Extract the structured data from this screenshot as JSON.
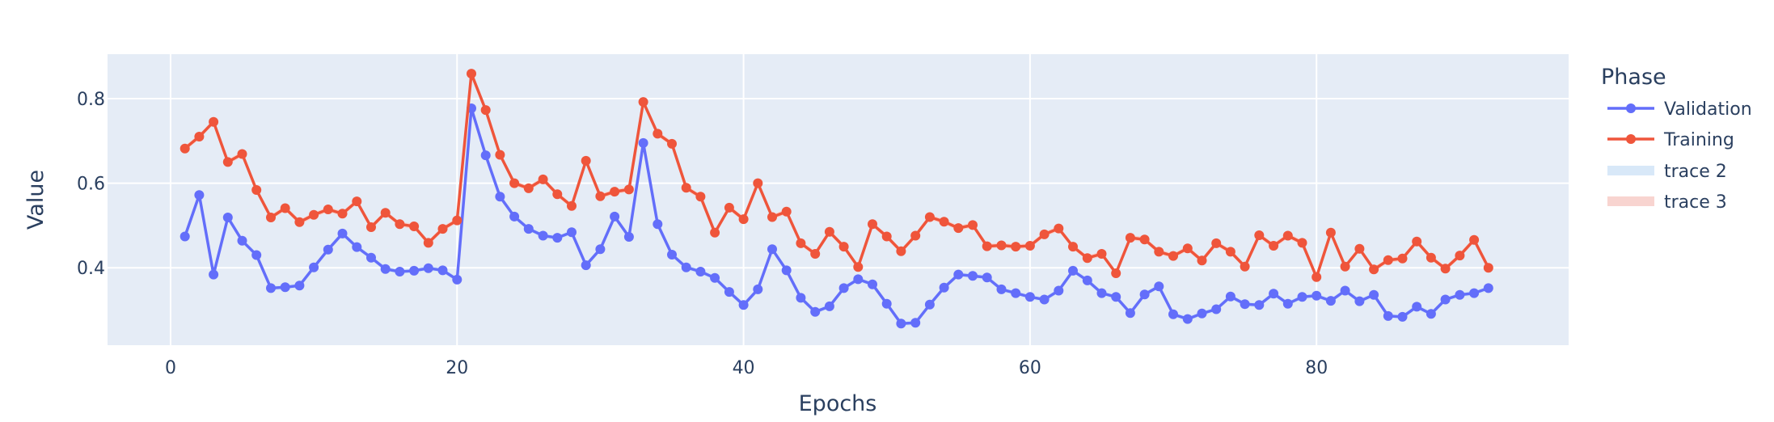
{
  "chart_data": {
    "type": "line",
    "xlabel": "Epochs",
    "ylabel": "Value",
    "xlim": [
      -4.4,
      97.6
    ],
    "ylim": [
      0.217,
      0.905
    ],
    "xticks": [
      0,
      20,
      40,
      60,
      80
    ],
    "yticks": [
      0.4,
      0.6,
      0.8
    ],
    "grid": true,
    "legend": {
      "title": "Phase",
      "position": "right"
    },
    "background_color": "#e5ecf6",
    "series": [
      {
        "name": "Validation",
        "color": "#636efa",
        "markers": true,
        "x": [
          1,
          2,
          3,
          4,
          5,
          6,
          7,
          8,
          9,
          10,
          11,
          12,
          13,
          14,
          15,
          16,
          17,
          18,
          19,
          20,
          21,
          22,
          23,
          24,
          25,
          26,
          27,
          28,
          29,
          30,
          31,
          32,
          33,
          34,
          35,
          36,
          37,
          38,
          39,
          40,
          41,
          42,
          43,
          44,
          45,
          46,
          47,
          48,
          49,
          50,
          51,
          52,
          53,
          54,
          55,
          56,
          57,
          58,
          59,
          60,
          61,
          62,
          63,
          64,
          65,
          66,
          67,
          68,
          69,
          70,
          71,
          72,
          73,
          74,
          75,
          76,
          77,
          78,
          79,
          80,
          81,
          82,
          83,
          84,
          85,
          86,
          87,
          88,
          89,
          90,
          91,
          92
        ],
        "y": [
          0.474,
          0.572,
          0.384,
          0.519,
          0.464,
          0.43,
          0.352,
          0.354,
          0.358,
          0.401,
          0.443,
          0.481,
          0.449,
          0.424,
          0.397,
          0.391,
          0.393,
          0.399,
          0.394,
          0.372,
          0.777,
          0.666,
          0.568,
          0.521,
          0.492,
          0.476,
          0.471,
          0.484,
          0.406,
          0.444,
          0.521,
          0.473,
          0.695,
          0.503,
          0.431,
          0.401,
          0.391,
          0.376,
          0.343,
          0.312,
          0.349,
          0.444,
          0.394,
          0.329,
          0.296,
          0.309,
          0.352,
          0.373,
          0.361,
          0.315,
          0.268,
          0.27,
          0.313,
          0.353,
          0.384,
          0.381,
          0.377,
          0.349,
          0.34,
          0.331,
          0.325,
          0.346,
          0.393,
          0.37,
          0.34,
          0.331,
          0.293,
          0.337,
          0.356,
          0.29,
          0.279,
          0.292,
          0.302,
          0.332,
          0.314,
          0.312,
          0.339,
          0.315,
          0.331,
          0.334,
          0.322,
          0.346,
          0.321,
          0.336,
          0.286,
          0.284,
          0.308,
          0.291,
          0.325,
          0.336,
          0.34,
          0.352
        ]
      },
      {
        "name": "Training",
        "color": "#ef553b",
        "markers": true,
        "x": [
          1,
          2,
          3,
          4,
          5,
          6,
          7,
          8,
          9,
          10,
          11,
          12,
          13,
          14,
          15,
          16,
          17,
          18,
          19,
          20,
          21,
          22,
          23,
          24,
          25,
          26,
          27,
          28,
          29,
          30,
          31,
          32,
          33,
          34,
          35,
          36,
          37,
          38,
          39,
          40,
          41,
          42,
          43,
          44,
          45,
          46,
          47,
          48,
          49,
          50,
          51,
          52,
          53,
          54,
          55,
          56,
          57,
          58,
          59,
          60,
          61,
          62,
          63,
          64,
          65,
          66,
          67,
          68,
          69,
          70,
          71,
          72,
          73,
          74,
          75,
          76,
          77,
          78,
          79,
          80,
          81,
          82,
          83,
          84,
          85,
          86,
          87,
          88,
          89,
          90,
          91,
          92
        ],
        "y": [
          0.682,
          0.71,
          0.745,
          0.65,
          0.669,
          0.584,
          0.519,
          0.541,
          0.508,
          0.525,
          0.538,
          0.528,
          0.557,
          0.496,
          0.53,
          0.503,
          0.498,
          0.459,
          0.492,
          0.512,
          0.859,
          0.773,
          0.667,
          0.6,
          0.588,
          0.609,
          0.574,
          0.546,
          0.653,
          0.569,
          0.58,
          0.585,
          0.792,
          0.717,
          0.693,
          0.589,
          0.568,
          0.483,
          0.542,
          0.515,
          0.6,
          0.52,
          0.533,
          0.458,
          0.433,
          0.485,
          0.45,
          0.402,
          0.503,
          0.474,
          0.439,
          0.476,
          0.52,
          0.509,
          0.494,
          0.501,
          0.451,
          0.453,
          0.45,
          0.452,
          0.479,
          0.493,
          0.45,
          0.423,
          0.433,
          0.387,
          0.471,
          0.467,
          0.438,
          0.428,
          0.446,
          0.417,
          0.458,
          0.438,
          0.403,
          0.477,
          0.452,
          0.476,
          0.459,
          0.378,
          0.483,
          0.403,
          0.445,
          0.396,
          0.418,
          0.422,
          0.462,
          0.424,
          0.398,
          0.429,
          0.466,
          0.4
        ]
      },
      {
        "name": "trace 2",
        "color": "#d8e8f8",
        "kind": "band"
      },
      {
        "name": "trace 3",
        "color": "#f8d4d0",
        "kind": "band"
      }
    ]
  }
}
